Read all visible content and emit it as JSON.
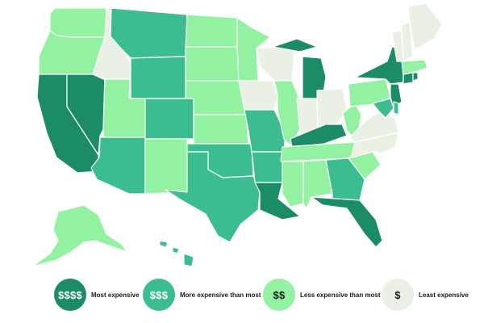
{
  "colors": {
    "most": "#1c8c68",
    "more": "#3cbd8f",
    "less": "#92f2a2",
    "least": "#eaf1e4",
    "border": "#ffffff"
  },
  "legend": [
    {
      "key": "most",
      "symbol": "$$$$",
      "label": "Most expensive"
    },
    {
      "key": "more",
      "symbol": "$$$",
      "label": "More expensive than most"
    },
    {
      "key": "less",
      "symbol": "$$",
      "label": "Less expensive than most"
    },
    {
      "key": "least",
      "symbol": "$",
      "label": "Least expensive"
    }
  ],
  "states": [
    {
      "name": "WA",
      "tier": "less"
    },
    {
      "name": "OR",
      "tier": "less"
    },
    {
      "name": "CA",
      "tier": "most"
    },
    {
      "name": "NV",
      "tier": "most"
    },
    {
      "name": "ID",
      "tier": "least"
    },
    {
      "name": "MT",
      "tier": "more"
    },
    {
      "name": "WY",
      "tier": "more"
    },
    {
      "name": "UT",
      "tier": "less"
    },
    {
      "name": "AZ",
      "tier": "more"
    },
    {
      "name": "CO",
      "tier": "more"
    },
    {
      "name": "NM",
      "tier": "less"
    },
    {
      "name": "ND",
      "tier": "less"
    },
    {
      "name": "SD",
      "tier": "less"
    },
    {
      "name": "NE",
      "tier": "less"
    },
    {
      "name": "KS",
      "tier": "less"
    },
    {
      "name": "OK",
      "tier": "more"
    },
    {
      "name": "TX",
      "tier": "more"
    },
    {
      "name": "MN",
      "tier": "less"
    },
    {
      "name": "IA",
      "tier": "least"
    },
    {
      "name": "MO",
      "tier": "more"
    },
    {
      "name": "AR",
      "tier": "more"
    },
    {
      "name": "LA",
      "tier": "most"
    },
    {
      "name": "WI",
      "tier": "least"
    },
    {
      "name": "IL",
      "tier": "less"
    },
    {
      "name": "MI",
      "tier": "most"
    },
    {
      "name": "IN",
      "tier": "least"
    },
    {
      "name": "OH",
      "tier": "least"
    },
    {
      "name": "KY",
      "tier": "most"
    },
    {
      "name": "TN",
      "tier": "less"
    },
    {
      "name": "MS",
      "tier": "less"
    },
    {
      "name": "AL",
      "tier": "less"
    },
    {
      "name": "GA",
      "tier": "more"
    },
    {
      "name": "FL",
      "tier": "most"
    },
    {
      "name": "SC",
      "tier": "less"
    },
    {
      "name": "NC",
      "tier": "least"
    },
    {
      "name": "VA",
      "tier": "least"
    },
    {
      "name": "WV",
      "tier": "less"
    },
    {
      "name": "PA",
      "tier": "less"
    },
    {
      "name": "NY",
      "tier": "most"
    },
    {
      "name": "NJ",
      "tier": "most"
    },
    {
      "name": "MD",
      "tier": "more"
    },
    {
      "name": "DE",
      "tier": "more"
    },
    {
      "name": "CT",
      "tier": "most"
    },
    {
      "name": "RI",
      "tier": "most"
    },
    {
      "name": "MA",
      "tier": "less"
    },
    {
      "name": "VT",
      "tier": "least"
    },
    {
      "name": "NH",
      "tier": "least"
    },
    {
      "name": "ME",
      "tier": "least"
    },
    {
      "name": "AK",
      "tier": "less"
    },
    {
      "name": "HI",
      "tier": "more"
    }
  ]
}
